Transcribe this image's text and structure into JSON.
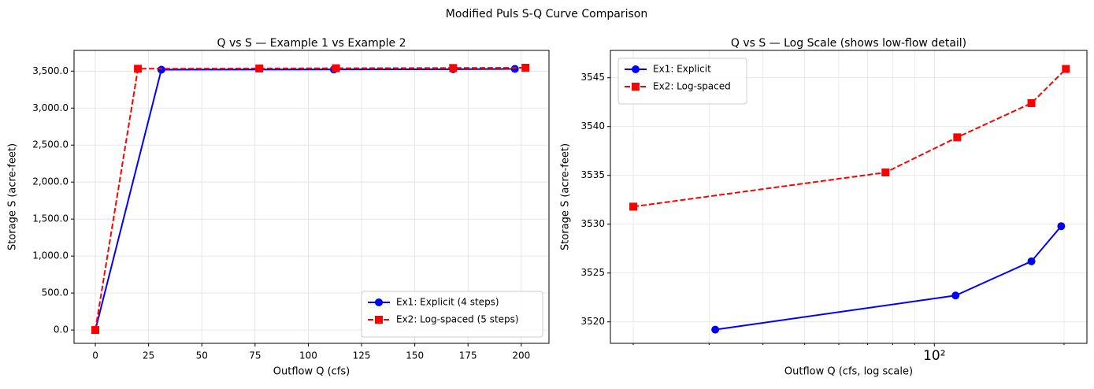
{
  "title": "Modified Puls S-Q Curve Comparison",
  "chart_data": [
    {
      "type": "line",
      "title": "Q vs S — Example 1 vs Example 2",
      "x_label": "Outflow Q (cfs)",
      "y_label": "Storage S (acre-feet)",
      "xlim": [
        -10,
        213
      ],
      "ylim": [
        -180,
        3780
      ],
      "xticks": [
        0,
        25,
        50,
        75,
        100,
        125,
        150,
        175,
        200
      ],
      "yticks": [
        {
          "value": 0,
          "label": "0.0"
        },
        {
          "value": 500,
          "label": "500.0"
        },
        {
          "value": 1000,
          "label": "1,000.0"
        },
        {
          "value": 1500,
          "label": "1,500.0"
        },
        {
          "value": 2000,
          "label": "2,000.0"
        },
        {
          "value": 2500,
          "label": "2,500.0"
        },
        {
          "value": 3000,
          "label": "3,000.0"
        },
        {
          "value": 3500,
          "label": "3,500.0"
        }
      ],
      "grid": true,
      "legend": "lower right",
      "series": [
        {
          "name": "Ex1: Explicit (4 steps)",
          "color": "#0000ff",
          "linestyle": "solid",
          "marker": "circle",
          "x": [
            0,
            31,
            112,
            168,
            197
          ],
          "values": [
            0,
            3519.2,
            3522.7,
            3526.2,
            3529.8
          ]
        },
        {
          "name": "Ex2: Log-spaced (5 steps)",
          "color": "#ff0000",
          "linestyle": "dashed",
          "marker": "square",
          "x": [
            0,
            20,
            77,
            113,
            168,
            202
          ],
          "values": [
            0,
            3531.8,
            3535.3,
            3538.9,
            3542.4,
            3545.9
          ]
        }
      ]
    },
    {
      "type": "line",
      "title": "Q vs S — Log Scale (shows low-flow detail)",
      "x_label": "Outflow Q (cfs, log scale)",
      "y_label": "Storage S (acre-feet)",
      "xscale": "log",
      "xlim": [
        17.7,
        226
      ],
      "ylim": [
        3517.8,
        3547.8
      ],
      "xticks": [
        {
          "value": 100,
          "label": "10²"
        }
      ],
      "xminorticks": [
        20,
        30,
        40,
        50,
        60,
        70,
        80,
        90,
        200
      ],
      "yticks": [
        3520,
        3525,
        3530,
        3535,
        3540,
        3545
      ],
      "grid": true,
      "legend": "upper left",
      "series": [
        {
          "name": "Ex1: Explicit",
          "color": "#0000ff",
          "linestyle": "solid",
          "marker": "circle",
          "x": [
            31,
            112,
            168,
            197
          ],
          "values": [
            3519.2,
            3522.7,
            3526.2,
            3529.8
          ]
        },
        {
          "name": "Ex2: Log-spaced",
          "color": "#ff0000",
          "linestyle": "dashed",
          "marker": "square",
          "x": [
            20,
            77,
            113,
            168,
            202
          ],
          "values": [
            3531.8,
            3535.3,
            3538.9,
            3542.4,
            3545.9
          ]
        }
      ]
    }
  ]
}
